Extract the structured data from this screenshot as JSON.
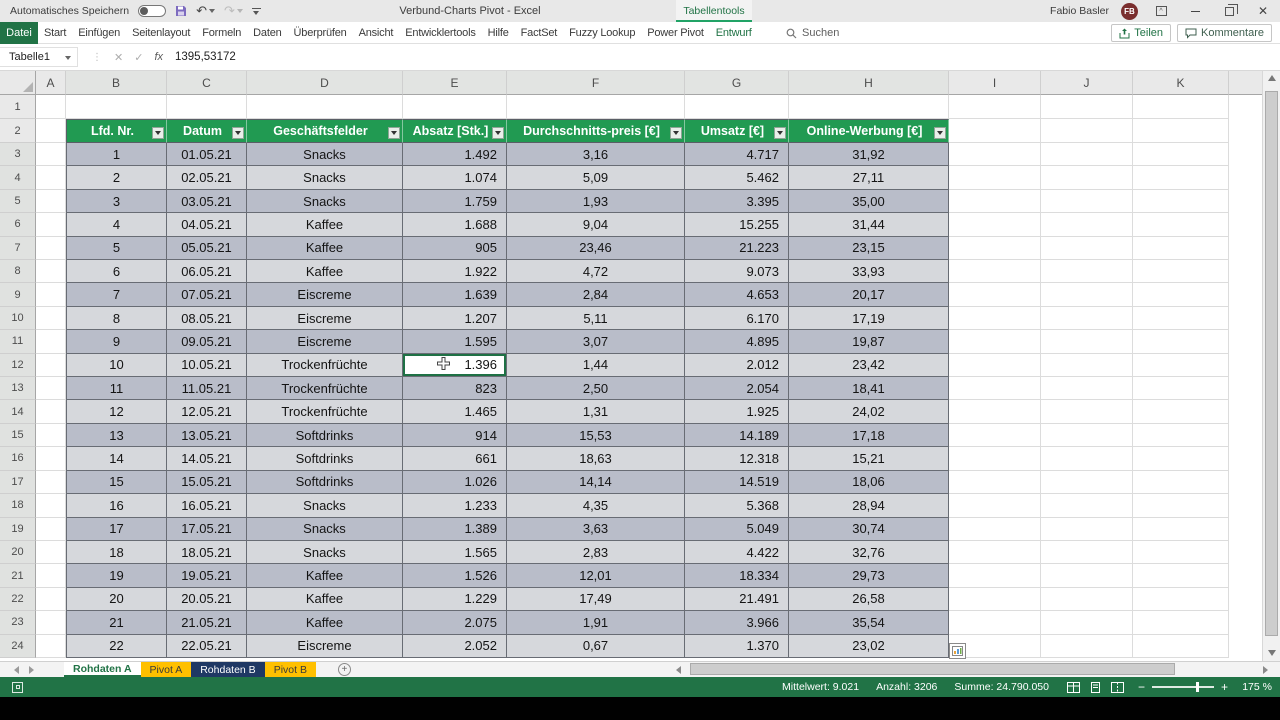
{
  "colors": {
    "excel_green": "#217346",
    "table_header_green": "#219a52",
    "band_dark": "#b9bdc9",
    "band_light": "#d6d8dc",
    "sheet_tab_yellow": "#ffc000",
    "sheet_tab_navy": "#1f3864"
  },
  "title_bar": {
    "autosave_label": "Automatisches Speichern",
    "title": "Verbund-Charts Pivot  -  Excel",
    "contextual_group": "Tabellentools",
    "user_name": "Fabio Basler",
    "user_initials": "FB"
  },
  "ribbon": {
    "file_tab": "Datei",
    "tabs": [
      "Start",
      "Einfügen",
      "Seitenlayout",
      "Formeln",
      "Daten",
      "Überprüfen",
      "Ansicht",
      "Entwicklertools",
      "Hilfe",
      "FactSet",
      "Fuzzy Lookup",
      "Power Pivot",
      "Entwurf"
    ],
    "active_contextual_tab": "Entwurf",
    "search_label": "Suchen",
    "share_label": "Teilen",
    "comments_label": "Kommentare"
  },
  "formula_bar": {
    "name_box": "Tabelle1",
    "fx_label": "fx",
    "value": "1395,53172"
  },
  "grid": {
    "column_letters": [
      "A",
      "B",
      "C",
      "D",
      "E",
      "F",
      "G",
      "H",
      "I",
      "J",
      "K"
    ],
    "row_count": 24
  },
  "table": {
    "headers": [
      "Lfd. Nr.",
      "Datum",
      "Geschäftsfelder",
      "Absatz [Stk.]",
      "Durchschnitts-preis [€]",
      "Umsatz [€]",
      "Online-Werbung [€]"
    ],
    "rows": [
      [
        "1",
        "01.05.21",
        "Snacks",
        "1.492",
        "3,16",
        "4.717",
        "31,92"
      ],
      [
        "2",
        "02.05.21",
        "Snacks",
        "1.074",
        "5,09",
        "5.462",
        "27,11"
      ],
      [
        "3",
        "03.05.21",
        "Snacks",
        "1.759",
        "1,93",
        "3.395",
        "35,00"
      ],
      [
        "4",
        "04.05.21",
        "Kaffee",
        "1.688",
        "9,04",
        "15.255",
        "31,44"
      ],
      [
        "5",
        "05.05.21",
        "Kaffee",
        "905",
        "23,46",
        "21.223",
        "23,15"
      ],
      [
        "6",
        "06.05.21",
        "Kaffee",
        "1.922",
        "4,72",
        "9.073",
        "33,93"
      ],
      [
        "7",
        "07.05.21",
        "Eiscreme",
        "1.639",
        "2,84",
        "4.653",
        "20,17"
      ],
      [
        "8",
        "08.05.21",
        "Eiscreme",
        "1.207",
        "5,11",
        "6.170",
        "17,19"
      ],
      [
        "9",
        "09.05.21",
        "Eiscreme",
        "1.595",
        "3,07",
        "4.895",
        "19,87"
      ],
      [
        "10",
        "10.05.21",
        "Trockenfrüchte",
        "1.396",
        "1,44",
        "2.012",
        "23,42"
      ],
      [
        "11",
        "11.05.21",
        "Trockenfrüchte",
        "823",
        "2,50",
        "2.054",
        "18,41"
      ],
      [
        "12",
        "12.05.21",
        "Trockenfrüchte",
        "1.465",
        "1,31",
        "1.925",
        "24,02"
      ],
      [
        "13",
        "13.05.21",
        "Softdrinks",
        "914",
        "15,53",
        "14.189",
        "17,18"
      ],
      [
        "14",
        "14.05.21",
        "Softdrinks",
        "661",
        "18,63",
        "12.318",
        "15,21"
      ],
      [
        "15",
        "15.05.21",
        "Softdrinks",
        "1.026",
        "14,14",
        "14.519",
        "18,06"
      ],
      [
        "16",
        "16.05.21",
        "Snacks",
        "1.233",
        "4,35",
        "5.368",
        "28,94"
      ],
      [
        "17",
        "17.05.21",
        "Snacks",
        "1.389",
        "3,63",
        "5.049",
        "30,74"
      ],
      [
        "18",
        "18.05.21",
        "Snacks",
        "1.565",
        "2,83",
        "4.422",
        "32,76"
      ],
      [
        "19",
        "19.05.21",
        "Kaffee",
        "1.526",
        "12,01",
        "18.334",
        "29,73"
      ],
      [
        "20",
        "20.05.21",
        "Kaffee",
        "1.229",
        "17,49",
        "21.491",
        "26,58"
      ],
      [
        "21",
        "21.05.21",
        "Kaffee",
        "2.075",
        "1,91",
        "3.966",
        "35,54"
      ],
      [
        "22",
        "22.05.21",
        "Eiscreme",
        "2.052",
        "0,67",
        "1.370",
        "23,02"
      ]
    ],
    "active_cell": {
      "column_letter": "E",
      "row_number": 12,
      "display_value": "1.396"
    }
  },
  "sheet_tabs": [
    {
      "label": "Rohdaten A",
      "style": "active"
    },
    {
      "label": "Pivot A",
      "style": "yellow"
    },
    {
      "label": "Rohdaten B",
      "style": "navy"
    },
    {
      "label": "Pivot B",
      "style": "yellow"
    }
  ],
  "status_bar": {
    "mittelwert": "Mittelwert: 9.021",
    "anzahl": "Anzahl: 3206",
    "summe": "Summe: 24.790.050",
    "zoom_level": "175 %"
  }
}
